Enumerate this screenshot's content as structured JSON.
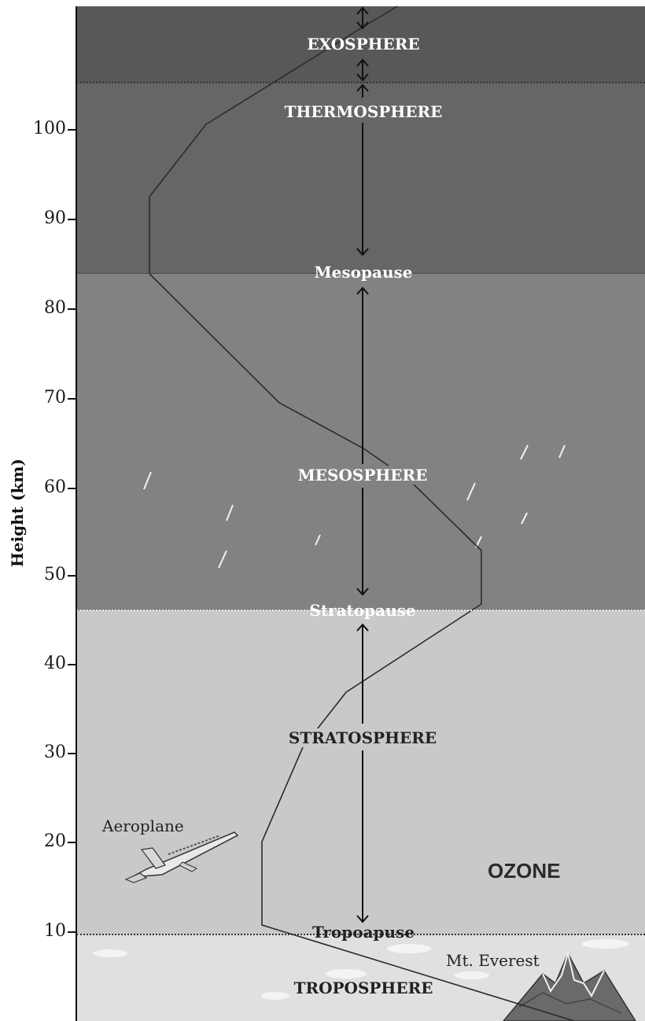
{
  "axis": {
    "label": "Height (km)",
    "ticks": [
      "100",
      "90",
      "80",
      "70",
      "60",
      "50",
      "40",
      "30",
      "20",
      "10"
    ]
  },
  "layers": {
    "exosphere": "EXOSPHERE",
    "thermosphere": "THERMOSPHERE",
    "mesopause": "Mesopause",
    "mesosphere": "MESOSPHERE",
    "stratopause": "Stratopause",
    "stratosphere": "STRATOSPHERE",
    "tropopause": "Tropoapuse",
    "troposphere": "TROPOSPHERE"
  },
  "annotations": {
    "ozone": "OZONE",
    "aeroplane": "Aeroplane",
    "everest": "Mt. Everest"
  },
  "colors": {
    "exosphere": "#585858",
    "thermosphere": "#666666",
    "mesosphere": "#828282",
    "stratosphere": "#c9c9c9",
    "troposphere": "#e0e0e0"
  }
}
